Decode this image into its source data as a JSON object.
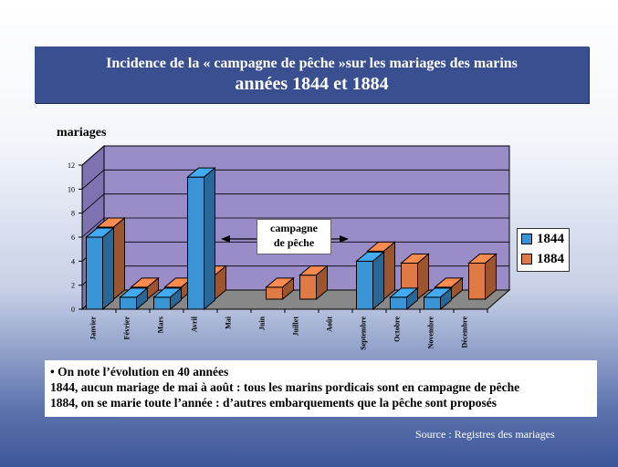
{
  "title": {
    "line1": "Incidence de la « campagne de pêche »sur les mariages des marins",
    "line2": "années 1844 et 1884"
  },
  "chart_data": {
    "type": "bar",
    "ylabel": "mariages",
    "ylim": [
      0,
      12
    ],
    "yticks": [
      0,
      2,
      4,
      6,
      8,
      10,
      12
    ],
    "categories": [
      "Janvier",
      "Février",
      "Mars",
      "Avril",
      "Mai",
      "Juin",
      "Juillet",
      "Août",
      "Septembre",
      "Octobre",
      "Novembre",
      "Décembre"
    ],
    "series": [
      {
        "name": "1844",
        "color": "#3a95d6",
        "values": [
          6,
          1,
          1,
          11,
          0,
          0,
          0,
          0,
          4,
          1,
          1,
          0
        ]
      },
      {
        "name": "1884",
        "color": "#e07a44",
        "values": [
          6,
          1,
          1,
          2,
          0,
          1,
          2,
          0,
          4,
          3,
          1,
          3
        ]
      }
    ],
    "annotation": {
      "line1": "campagne",
      "line2": "de pêche"
    },
    "grid": true,
    "legend_position": "right"
  },
  "notes": [
    "• On note l’évolution en 40 années",
    "1844, aucun mariage de mai à août : tous les marins pordicais sont en campagne de pêche",
    "1884, on se marie toute l’année : d’autres embarquements que la pêche sont proposés"
  ],
  "source": "Source : Registres des mariages"
}
